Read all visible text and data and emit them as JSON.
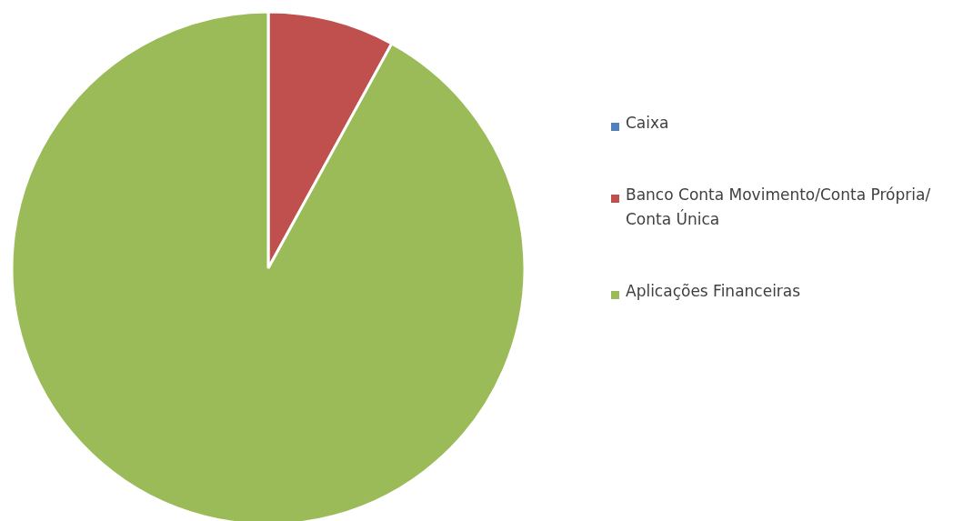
{
  "chart_data": {
    "type": "pie",
    "categories": [
      "Caixa",
      "Banco Conta Movimento/Conta Própria/ Conta Única",
      "Aplicações Financeiras"
    ],
    "values": [
      0,
      8,
      92
    ],
    "colors": [
      "#4f81bd",
      "#c0504d",
      "#9bbb59"
    ],
    "legend": "right"
  }
}
